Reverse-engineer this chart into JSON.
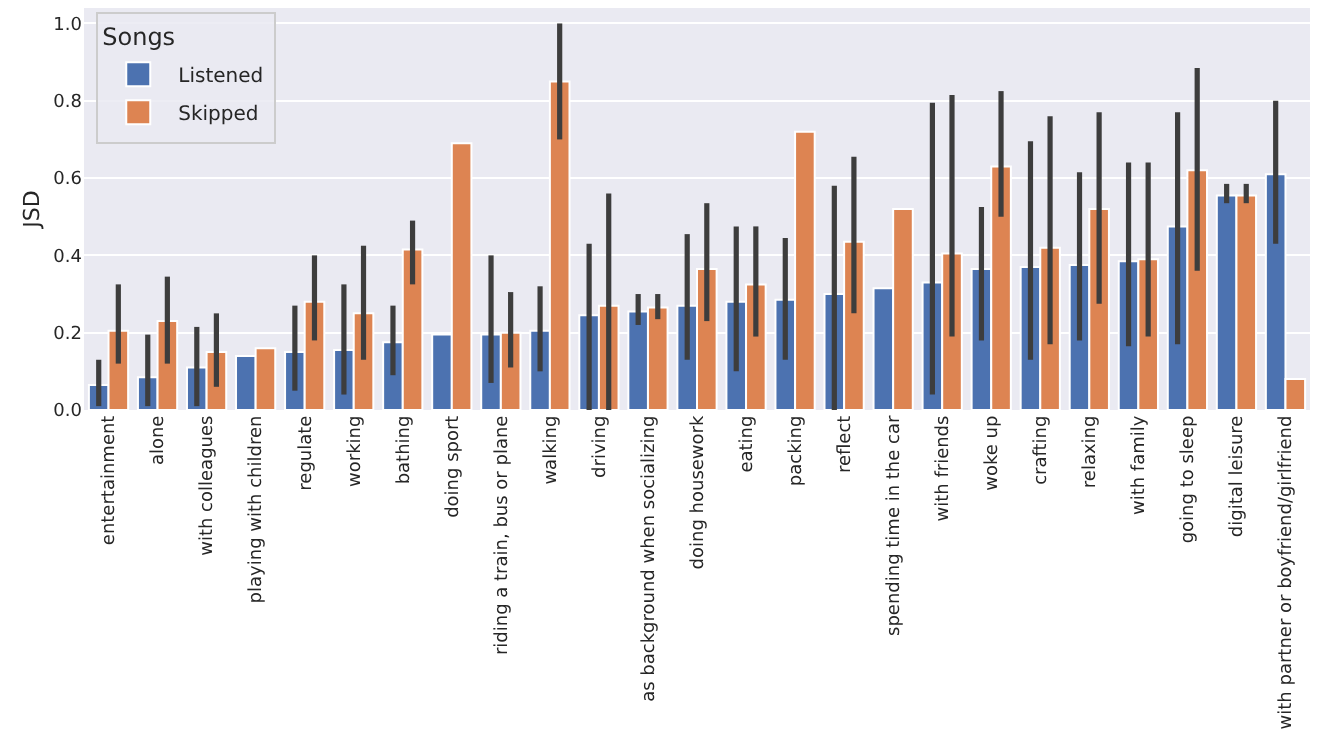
{
  "chart_data": {
    "type": "bar",
    "ylabel": "JSD",
    "legend_title": "Songs",
    "legend": "top left",
    "grid": "y",
    "categories": [
      "entertainment",
      "alone",
      "with colleagues",
      "playing with children",
      "regulate",
      "working",
      "bathing",
      "doing sport",
      "riding a train, bus or plane",
      "walking",
      "driving",
      "as background when socializing",
      "doing housework",
      "eating",
      "packing",
      "reflect",
      "spending time in the car",
      "with friends",
      "woke up",
      "crafting",
      "relaxing",
      "with family",
      "going to sleep",
      "digital leisure",
      "with partner or boyfriend/girlfriend"
    ],
    "ylim": [
      0,
      1.04
    ],
    "yticks": [
      {
        "value": 0,
        "label": "0.0"
      },
      {
        "value": 0.2,
        "label": "0.2"
      },
      {
        "value": 0.4,
        "label": "0.4"
      },
      {
        "value": 0.6,
        "label": "0.6"
      },
      {
        "value": 0.8,
        "label": "0.8"
      },
      {
        "value": 1,
        "label": "1.0"
      }
    ],
    "series": [
      {
        "name": "Listened",
        "color": "#4c72b0",
        "values": [
          0.065,
          0.085,
          0.11,
          0.14,
          0.15,
          0.155,
          0.175,
          0.195,
          0.195,
          0.205,
          0.245,
          0.255,
          0.27,
          0.28,
          0.285,
          0.3,
          0.315,
          0.33,
          0.365,
          0.37,
          0.375,
          0.385,
          0.475,
          0.555,
          0.61
        ],
        "errors": [
          [
            0.01,
            0.13
          ],
          [
            0.01,
            0.195
          ],
          [
            0.01,
            0.215
          ],
          null,
          [
            0.05,
            0.27
          ],
          [
            0.04,
            0.325
          ],
          [
            0.09,
            0.27
          ],
          null,
          [
            0.07,
            0.4
          ],
          [
            0.1,
            0.32
          ],
          [
            0.0,
            0.43
          ],
          [
            0.22,
            0.3
          ],
          [
            0.13,
            0.455
          ],
          [
            0.1,
            0.475
          ],
          [
            0.13,
            0.445
          ],
          [
            0.0,
            0.58
          ],
          null,
          [
            0.04,
            0.795
          ],
          [
            0.18,
            0.525
          ],
          [
            0.13,
            0.695
          ],
          [
            0.18,
            0.615
          ],
          [
            0.165,
            0.64
          ],
          [
            0.17,
            0.77
          ],
          [
            0.535,
            0.585
          ],
          [
            0.43,
            0.8
          ]
        ]
      },
      {
        "name": "Skipped",
        "color": "#dd8452",
        "values": [
          0.205,
          0.23,
          0.15,
          0.16,
          0.28,
          0.25,
          0.415,
          0.69,
          0.2,
          0.85,
          0.27,
          0.265,
          0.365,
          0.325,
          0.72,
          0.435,
          0.52,
          0.405,
          0.63,
          0.42,
          0.52,
          0.39,
          0.62,
          0.555,
          0.08
        ],
        "errors": [
          [
            0.12,
            0.325
          ],
          [
            0.12,
            0.345
          ],
          [
            0.06,
            0.25
          ],
          null,
          [
            0.18,
            0.4
          ],
          [
            0.13,
            0.425
          ],
          [
            0.325,
            0.49
          ],
          null,
          [
            0.11,
            0.305
          ],
          [
            0.7,
            1.0
          ],
          [
            0.0,
            0.56
          ],
          [
            0.235,
            0.3
          ],
          [
            0.23,
            0.535
          ],
          [
            0.19,
            0.475
          ],
          null,
          [
            0.25,
            0.655
          ],
          null,
          [
            0.19,
            0.815
          ],
          [
            0.5,
            0.825
          ],
          [
            0.17,
            0.76
          ],
          [
            0.275,
            0.77
          ],
          [
            0.19,
            0.64
          ],
          [
            0.36,
            0.885
          ],
          [
            0.535,
            0.585
          ],
          null
        ]
      }
    ]
  }
}
